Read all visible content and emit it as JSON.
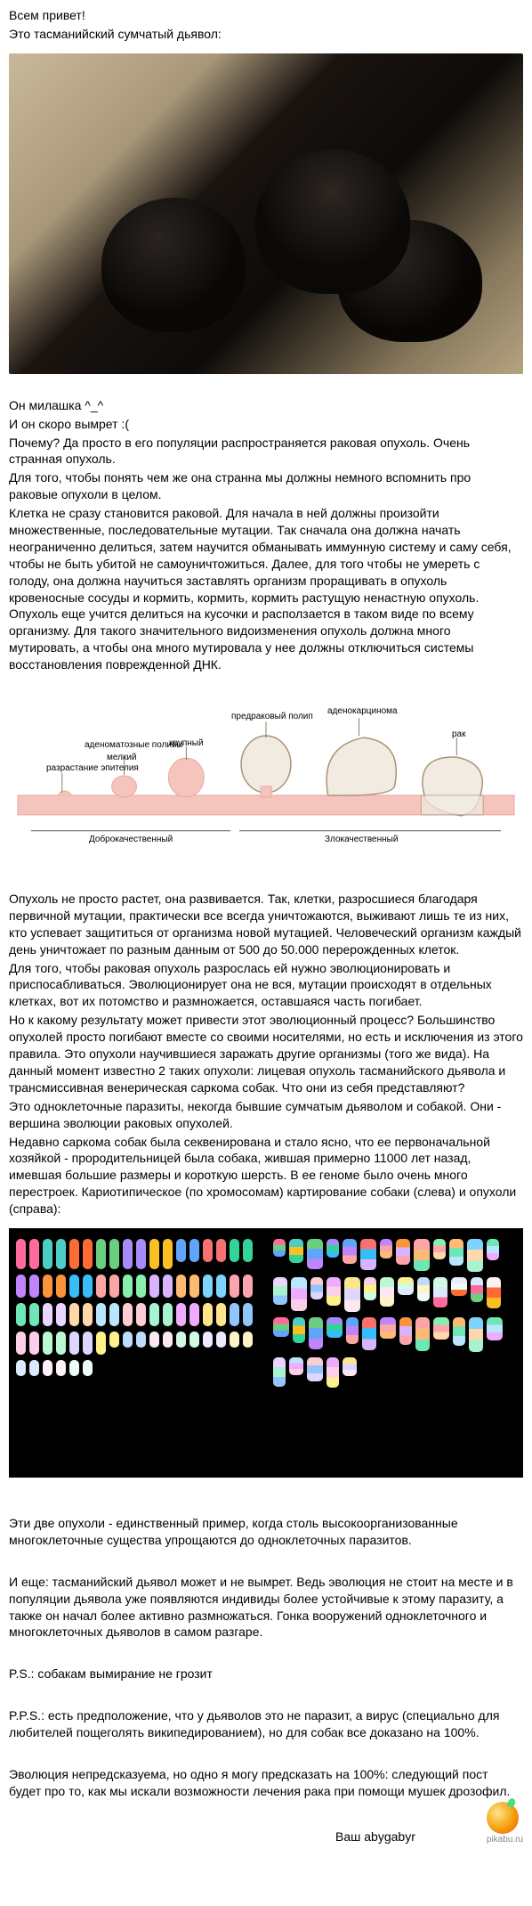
{
  "intro": {
    "greet": "Всем привет!",
    "caption_line": "Это тасманийский сумчатый дьявол:"
  },
  "after_photo": {
    "cute": "Он милашка ^_^",
    "extinct": "И он скоро вымрет :(",
    "why": "Почему? Да просто в его популяции распространяется раковая опухоль. Очень странная опухоль.",
    "to_understand": "Для того, чтобы понять чем же она странна мы должны немного вспомнить про раковые опухоли в целом.",
    "cell_long": "Клетка не сразу становится раковой. Для начала в ней должны произойти множественные, последовательные мутации. Так сначала она должна начать неограниченно делиться, затем научится обманывать иммунную систему и саму себя, чтобы не быть убитой не самоуничтожиться. Далее, для того чтобы не умереть с голоду, она должна научиться заставлять организм проращивать в опухоль кровеносные сосуды и кормить, кормить, кормить растущую ненастную опухоль. Опухоль еще учится делиться на кусочки и расползается в таком виде по всему организму. Для такого значительного видоизменения опухоль должна много мутировать, а чтобы она много мутировала у нее должны отключиться системы восстановления поврежденной ДНК."
  },
  "diagram": {
    "labels": {
      "adenoma_polyps": "аденоматозные полипы",
      "precancer": "предраковый полип",
      "adenocarcinoma": "аденокарцинома",
      "small": "мелкий",
      "large": "крупный",
      "epi": "разрастание эпителия",
      "rak": "рак",
      "benign": "Доброкачественный",
      "malignant": "Злокачественный"
    },
    "colors": {
      "tissue": "#f5c4bd",
      "tissue_dark": "#e8a99f",
      "tumor_fill": "#f2ebe2",
      "tumor_edge": "#a8937a",
      "line": "#6b5c4a",
      "base": "#e8d4cf"
    }
  },
  "mid": {
    "p1": "Опухоль не просто растет, она развивается. Так, клетки, разросшиеся благодаря первичной мутации, практически все всегда уничтожаются, выживают лишь те из них, кто успевает защититься от организма новой мутацией. Человеческий организм каждый день уничтожает по разным данным от 500 до 50.000 перерожденных клеток.",
    "p2": "Для того, чтобы раковая опухоль разрослась ей нужно эволюционировать и приспосабливаться. Эволюционирует она не вся, мутации происходят в отдельных клетках, вот их потомство и размножается, оставшаяся часть погибает.",
    "p3": "Но к какому результату может привести этот эволюционный процесс? Большинство опухолей просто погибают вместе со своими носителями, но есть и исключения из этого правила. Это опухоли научившиеся заражать другие организмы (того же вида). На данный момент известно 2 таких опухоли: лицевая опухоль тасманийского дьявола и трансмиссивная венерическая саркома собак. Что они из себя представляют?",
    "p4": "Это одноклеточные паразиты, некогда бывшие сумчатым дьяволом и собакой. Они - вершина эволюции раковых опухолей.",
    "p5": "Недавно саркома собак была секвенирована и стало ясно, что ее первоначальной хозяйкой - прородительницей была собака, жившая примерно 11000 лет назад, имевшая большие размеры и короткую шерсть. В ее геноме было очень много перестроек. Кариотипическое (по хромосомам) картирование собаки (слева) и опухоли (справа):"
  },
  "karyotype": {
    "dog_colors": [
      "#ff6b9d",
      "#ff6b9d",
      "#4ecdc4",
      "#4ecdc4",
      "#ff6b35",
      "#ff6b35",
      "#6bcf7f",
      "#6bcf7f",
      "#a78bfa",
      "#a78bfa",
      "#fbbf24",
      "#fbbf24",
      "#60a5fa",
      "#60a5fa",
      "#f87171",
      "#f87171",
      "#34d399",
      "#34d399",
      "#c084fc",
      "#c084fc",
      "#fb923c",
      "#fb923c",
      "#38bdf8",
      "#38bdf8",
      "#fca5a5",
      "#fca5a5",
      "#86efac",
      "#86efac",
      "#d8b4fe",
      "#d8b4fe",
      "#fdba74",
      "#fdba74",
      "#7dd3fc",
      "#7dd3fc",
      "#fda4af",
      "#fda4af",
      "#6ee7b7",
      "#6ee7b7",
      "#e9d5ff",
      "#e9d5ff",
      "#fed7aa",
      "#fed7aa",
      "#bae6fd",
      "#bae6fd",
      "#fecdd3",
      "#fecdd3",
      "#a7f3d0",
      "#a7f3d0",
      "#f0abfc",
      "#f0abfc",
      "#fde68a",
      "#fde68a",
      "#93c5fd",
      "#93c5fd",
      "#fbcfe8",
      "#fbcfe8",
      "#bbf7d0",
      "#bbf7d0",
      "#ddd6fe",
      "#ddd6fe",
      "#fef08a",
      "#fef08a",
      "#bfdbfe",
      "#bfdbfe",
      "#fce7f3",
      "#fce7f3",
      "#d1fae5",
      "#d1fae5",
      "#ede9fe",
      "#ede9fe",
      "#fef3c7",
      "#fef3c7",
      "#dbeafe",
      "#dbeafe",
      "#fdf2f8",
      "#fdf2f8",
      "#ecfdf5",
      "#ecfdf5"
    ]
  },
  "post": {
    "p1": "Эти две опухоли - единственный пример, когда столь высокоорганизованные многоклеточные существа упрощаются до одноклеточных паразитов.",
    "p2": "И еще: тасманийский дьявол может и не вымрет. Ведь эволюция не стоит на месте и в популяции дьявола уже появляются индивиды более устойчивые к этому паразиту, а также он начал более активно размножаться. Гонка вооружений одноклеточного и многоклеточных дьяволов в самом разгаре.",
    "ps": "P.S.: собакам вымирание не грозит",
    "pps": "P.P.S.: есть предположение, что у дьяволов это не паразит, а вирус (специально для любителей пощеголять википедированием), но для собак все доказано на 100%.",
    "final": "Эволюция непредсказуема, но одно я могу предсказать на 100%: следующий пост будет про то, как мы искали возможности лечения рака при помощи мушек дрозофил.",
    "sign": "Ваш abygabyr"
  },
  "footer": {
    "site": "pikabu.ru"
  }
}
